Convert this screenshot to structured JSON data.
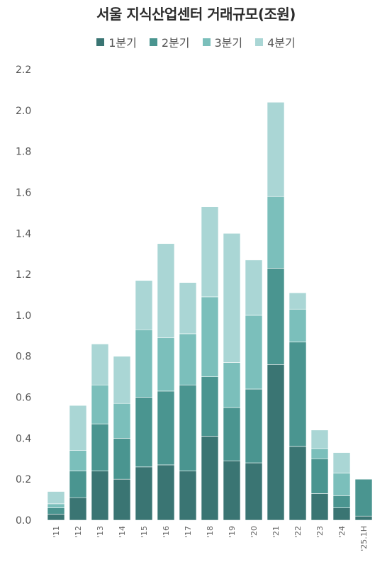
{
  "chart_data": {
    "type": "bar",
    "stacked": true,
    "title": "서울 지식산업센터 거래규모(조원)",
    "categories": [
      "'11",
      "'12",
      "'13",
      "'14",
      "'15",
      "'16",
      "'17",
      "'18",
      "'19",
      "'20",
      "'21",
      "'22",
      "'23",
      "'24",
      "'25.1H"
    ],
    "series": [
      {
        "name": "1분기",
        "color": "#3a7573",
        "values": [
          0.03,
          0.11,
          0.24,
          0.2,
          0.26,
          0.27,
          0.24,
          0.41,
          0.29,
          0.28,
          0.76,
          0.36,
          0.13,
          0.06,
          0.02
        ]
      },
      {
        "name": "2분기",
        "color": "#4a9590",
        "values": [
          0.03,
          0.13,
          0.23,
          0.2,
          0.34,
          0.36,
          0.42,
          0.29,
          0.26,
          0.36,
          0.47,
          0.51,
          0.17,
          0.06,
          0.18
        ]
      },
      {
        "name": "3분기",
        "color": "#7bbfbb",
        "values": [
          0.02,
          0.1,
          0.19,
          0.17,
          0.33,
          0.26,
          0.25,
          0.39,
          0.22,
          0.36,
          0.35,
          0.16,
          0.05,
          0.11,
          0
        ]
      },
      {
        "name": "4분기",
        "color": "#aad6d5",
        "values": [
          0.06,
          0.22,
          0.2,
          0.23,
          0.24,
          0.46,
          0.25,
          0.44,
          0.63,
          0.27,
          0.46,
          0.08,
          0.09,
          0.1,
          0
        ]
      }
    ],
    "yticks": [
      "0.0",
      "0.2",
      "0.4",
      "0.6",
      "0.8",
      "1.0",
      "1.2",
      "1.4",
      "1.6",
      "1.8",
      "2.0",
      "2.2"
    ],
    "ylim": [
      0,
      2.2
    ],
    "grid": false,
    "legend_position": "top-center"
  }
}
